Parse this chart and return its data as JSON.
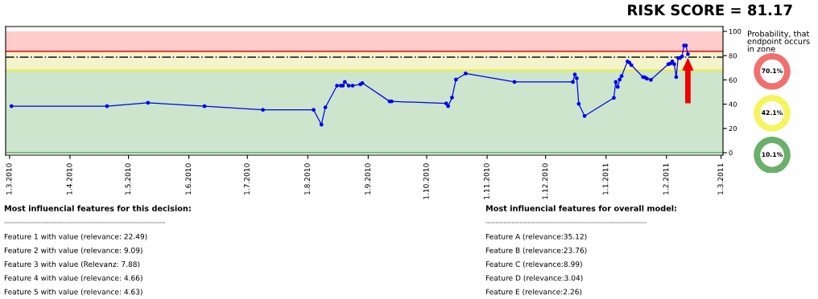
{
  "chart_data": [
    {
      "type": "line",
      "title": "RISK SCORE = 81.17",
      "marker": "circle",
      "line_style": "solid",
      "grid": false,
      "xlim": [
        "2010-02-27",
        "2011-03-02"
      ],
      "ylim": [
        -2,
        104
      ],
      "xticks": [
        {
          "value": "2010-03-01",
          "label": "1.3.2010"
        },
        {
          "value": "2010-04-01",
          "label": "1.4.2010"
        },
        {
          "value": "2010-05-01",
          "label": "1.5.2010"
        },
        {
          "value": "2010-06-01",
          "label": "1.6.2010"
        },
        {
          "value": "2010-07-01",
          "label": "1.7.2010"
        },
        {
          "value": "2010-08-01",
          "label": "1.8.2010"
        },
        {
          "value": "2010-09-01",
          "label": "1.9.2010"
        },
        {
          "value": "2010-10-01",
          "label": "1.10.2010"
        },
        {
          "value": "2010-11-01",
          "label": "1.11.2010"
        },
        {
          "value": "2010-12-01",
          "label": "1.12.2010"
        },
        {
          "value": "2011-01-01",
          "label": "1.1.2011"
        },
        {
          "value": "2011-02-01",
          "label": "1.2.2011"
        },
        {
          "value": "2011-03-01",
          "label": "1.3.2011"
        }
      ],
      "yticks": [
        0,
        20,
        40,
        60,
        80,
        100
      ],
      "bands": [
        {
          "axis": "y",
          "from": 0,
          "to": 68,
          "color": "#cce5cc"
        },
        {
          "axis": "y",
          "from": 68,
          "to": 83.5,
          "color": "#f3f3cc"
        },
        {
          "axis": "y",
          "from": 83.5,
          "to": 100,
          "color": "#ffcccc"
        }
      ],
      "ref_lines": [
        {
          "axis": "y",
          "value": 0,
          "color": "#5aa55a",
          "line_style": "solid"
        },
        {
          "axis": "y",
          "value": 68,
          "color": "#f0f020",
          "line_style": "solid"
        },
        {
          "axis": "y",
          "value": 78.7,
          "color": "#333333",
          "line_style": "dashed"
        },
        {
          "axis": "y",
          "value": 83.5,
          "color": "#ee2222",
          "line_style": "solid"
        }
      ],
      "x": [
        "2010-03-02",
        "2010-04-20",
        "2010-05-11",
        "2010-06-09",
        "2010-07-09",
        "2010-08-04",
        "2010-08-08",
        "2010-08-10",
        "2010-08-16",
        "2010-08-18",
        "2010-08-19",
        "2010-08-20",
        "2010-08-22",
        "2010-08-24",
        "2010-08-28",
        "2010-08-29",
        "2010-09-12",
        "2010-09-13",
        "2010-10-11",
        "2010-10-12",
        "2010-10-14",
        "2010-10-16",
        "2010-10-21",
        "2010-11-15",
        "2010-12-15",
        "2010-12-16",
        "2010-12-17",
        "2010-12-18",
        "2010-12-21",
        "2011-01-05",
        "2011-01-06",
        "2011-01-07",
        "2011-01-08",
        "2011-01-09",
        "2011-01-12",
        "2011-01-13",
        "2011-01-14",
        "2011-01-20",
        "2011-01-21",
        "2011-01-22",
        "2011-01-24",
        "2011-02-02",
        "2011-02-03",
        "2011-02-04",
        "2011-02-05",
        "2011-02-06",
        "2011-02-07",
        "2011-02-08",
        "2011-02-09",
        "2011-02-10",
        "2011-02-11",
        "2011-02-12"
      ],
      "series": [
        {
          "color": "#0000ee",
          "values": [
            38.4,
            38.4,
            41.2,
            38.4,
            35.3,
            35.3,
            23.2,
            37.3,
            55.3,
            55.3,
            55.3,
            58.3,
            55.3,
            55.3,
            56.4,
            57.4,
            42.3,
            42.3,
            40.6,
            38.4,
            45.4,
            60.3,
            65.3,
            58.3,
            58.3,
            64.5,
            61.4,
            40.3,
            30.3,
            45.2,
            58.3,
            54.2,
            60.3,
            63.2,
            75.2,
            74.3,
            72.2,
            62.3,
            62,
            61.0,
            60.1,
            73.0,
            73.5,
            75.2,
            73.0,
            62.3,
            78.1,
            78.1,
            79.4,
            88.4,
            88.4,
            81.2
          ]
        }
      ]
    },
    {
      "type": "other",
      "title": "Probability, that\nendpoint occurs\nin zone",
      "colors": [
        "#f07070",
        "#f5f560",
        "#6aaf6a"
      ],
      "annotations": [
        "70.1%",
        "42.1%",
        "10.1%"
      ]
    },
    {
      "type": "other",
      "title": "Most influencial features for this decision:",
      "annotations": [
        "--------------------------------------------------------------------------------",
        "Feature 1 with value (relevance: 22.49)",
        "Feature 2 with value (relevance: 9.09)",
        "Feature 3 with value (Relevanz: 7.88)",
        "Feature 4 with value (relevance: 4.66)",
        "Feature 5 with value (relevance: 4.63)"
      ]
    },
    {
      "type": "other",
      "title": "Most influencial features for overall model:",
      "annotations": [
        "--------------------------------------------------------------------------------",
        "Feature A (relevance:35.12)",
        "Feature B (relevance:23.76)",
        "Feature C (relevance:8.99)",
        "Feature D (relevance:3.04)",
        "Feature E (relevance:2.26)"
      ]
    }
  ]
}
